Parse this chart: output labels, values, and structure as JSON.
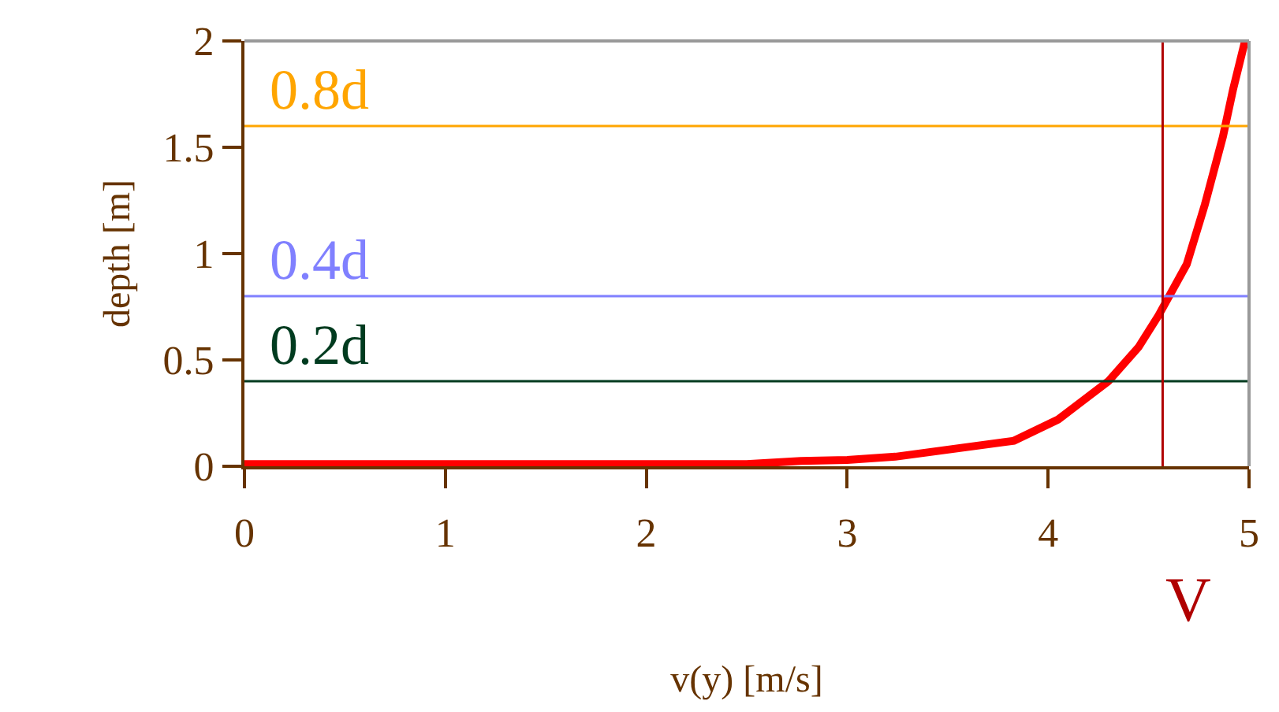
{
  "chart_data": {
    "type": "line",
    "xlabel": "v(y) [m/s]",
    "ylabel": "depth [m]",
    "x": [
      0,
      2.5,
      2.77,
      3.0,
      3.24,
      3.83,
      4.05,
      4.3,
      4.45,
      4.55,
      4.69,
      4.78,
      4.87,
      4.92,
      4.98
    ],
    "series": [
      {
        "color": "#ff0000",
        "values": [
          0.01,
          0.01,
          0.025,
          0.03,
          0.045,
          0.12,
          0.22,
          0.4,
          0.56,
          0.71,
          0.95,
          1.23,
          1.55,
          1.77,
          2.0
        ]
      }
    ],
    "xlim": [
      0,
      5
    ],
    "xticks": [
      0,
      1,
      2,
      3,
      4,
      5
    ],
    "ylim": [
      0,
      2
    ],
    "yticks": [
      0,
      0.5,
      1,
      1.5,
      2
    ],
    "marker": "none",
    "line_style": "solid",
    "ref_lines": [
      {
        "axis": "y",
        "value": 1.6,
        "label": "0.8d",
        "color": "#ffa500"
      },
      {
        "axis": "y",
        "value": 0.8,
        "label": "0.4d",
        "color": "#8080ff"
      },
      {
        "axis": "y",
        "value": 0.4,
        "label": "0.2d",
        "color": "#003b1f"
      },
      {
        "axis": "x",
        "value": 4.57,
        "label": "V",
        "color": "#b00000"
      }
    ]
  }
}
